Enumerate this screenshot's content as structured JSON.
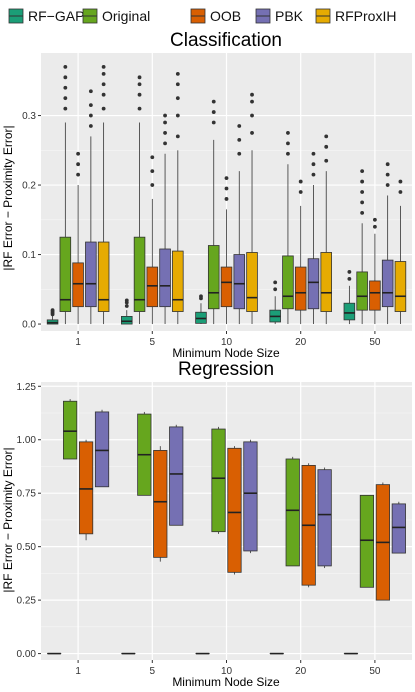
{
  "colors": {
    "RF-GAP": "#1b9e77",
    "Original": "#66a61e",
    "OOB": "#d95f02",
    "PBK": "#7570b3",
    "RFProxIH": "#e6ab02"
  },
  "legend": [
    "RF−GAP",
    "Original",
    "OOB",
    "PBK",
    "RFProxIH"
  ],
  "chart_data": [
    {
      "type": "box",
      "title": "Classification",
      "xlabel": "Minimum Node Size",
      "ylabel": "|RF Error − Proximity Error|",
      "categories": [
        "1",
        "5",
        "10",
        "20",
        "50"
      ],
      "yticks": [
        0.0,
        0.1,
        0.2,
        0.3
      ],
      "ytick_labels": [
        "0.0",
        "0.1",
        "0.2",
        "0.3"
      ],
      "ylim": [
        -0.01,
        0.39
      ],
      "grid": true,
      "series": [
        {
          "name": "RF−GAP",
          "boxes": [
            {
              "min": 0.0,
              "q1": 0.0,
              "median": 0.002,
              "q3": 0.006,
              "max": 0.012,
              "outliers": [
                0.014,
                0.016,
                0.018,
                0.02
              ]
            },
            {
              "min": 0.0,
              "q1": 0.0,
              "median": 0.004,
              "q3": 0.011,
              "max": 0.02,
              "outliers": [
                0.026,
                0.031,
                0.034
              ]
            },
            {
              "min": 0.0,
              "q1": 0.001,
              "median": 0.008,
              "q3": 0.017,
              "max": 0.03,
              "outliers": [
                0.037,
                0.04
              ]
            },
            {
              "min": 0.0,
              "q1": 0.003,
              "median": 0.011,
              "q3": 0.02,
              "max": 0.04,
              "outliers": [
                0.05,
                0.06
              ]
            },
            {
              "min": 0.0,
              "q1": 0.006,
              "median": 0.016,
              "q3": 0.03,
              "max": 0.055,
              "outliers": [
                0.065,
                0.075
              ]
            }
          ]
        },
        {
          "name": "Original",
          "boxes": [
            {
              "min": 0.0,
              "q1": 0.018,
              "median": 0.035,
              "q3": 0.125,
              "max": 0.29,
              "outliers": [
                0.31,
                0.325,
                0.34,
                0.355,
                0.37
              ]
            },
            {
              "min": 0.0,
              "q1": 0.018,
              "median": 0.035,
              "q3": 0.125,
              "max": 0.29,
              "outliers": [
                0.31,
                0.33,
                0.345,
                0.355
              ]
            },
            {
              "min": 0.0,
              "q1": 0.022,
              "median": 0.045,
              "q3": 0.113,
              "max": 0.265,
              "outliers": [
                0.29,
                0.305,
                0.32
              ]
            },
            {
              "min": 0.0,
              "q1": 0.022,
              "median": 0.04,
              "q3": 0.098,
              "max": 0.23,
              "outliers": [
                0.245,
                0.26,
                0.275
              ]
            },
            {
              "min": 0.0,
              "q1": 0.02,
              "median": 0.04,
              "q3": 0.075,
              "max": 0.145,
              "outliers": [
                0.16,
                0.175,
                0.19,
                0.205,
                0.22
              ]
            }
          ]
        },
        {
          "name": "OOB",
          "boxes": [
            {
              "min": 0.0,
              "q1": 0.025,
              "median": 0.058,
              "q3": 0.088,
              "max": 0.2,
              "outliers": [
                0.215,
                0.23,
                0.245
              ]
            },
            {
              "min": 0.0,
              "q1": 0.025,
              "median": 0.055,
              "q3": 0.082,
              "max": 0.18,
              "outliers": [
                0.2,
                0.22,
                0.24
              ]
            },
            {
              "min": 0.0,
              "q1": 0.025,
              "median": 0.06,
              "q3": 0.082,
              "max": 0.165,
              "outliers": [
                0.18,
                0.195,
                0.21
              ]
            },
            {
              "min": 0.0,
              "q1": 0.02,
              "median": 0.045,
              "q3": 0.082,
              "max": 0.17,
              "outliers": [
                0.19,
                0.205
              ]
            },
            {
              "min": 0.0,
              "q1": 0.02,
              "median": 0.045,
              "q3": 0.062,
              "max": 0.13,
              "outliers": [
                0.14,
                0.15
              ]
            }
          ]
        },
        {
          "name": "PBK",
          "boxes": [
            {
              "min": 0.0,
              "q1": 0.025,
              "median": 0.058,
              "q3": 0.118,
              "max": 0.27,
              "outliers": [
                0.285,
                0.3,
                0.315,
                0.335
              ]
            },
            {
              "min": 0.0,
              "q1": 0.025,
              "median": 0.055,
              "q3": 0.108,
              "max": 0.245,
              "outliers": [
                0.26,
                0.275,
                0.29,
                0.3
              ]
            },
            {
              "min": 0.0,
              "q1": 0.022,
              "median": 0.058,
              "q3": 0.1,
              "max": 0.22,
              "outliers": [
                0.245,
                0.265,
                0.285
              ]
            },
            {
              "min": 0.0,
              "q1": 0.022,
              "median": 0.06,
              "q3": 0.094,
              "max": 0.2,
              "outliers": [
                0.215,
                0.23,
                0.245
              ]
            },
            {
              "min": 0.0,
              "q1": 0.025,
              "median": 0.045,
              "q3": 0.092,
              "max": 0.185,
              "outliers": [
                0.2,
                0.215,
                0.23
              ]
            }
          ]
        },
        {
          "name": "RFProxIH",
          "boxes": [
            {
              "min": 0.0,
              "q1": 0.018,
              "median": 0.035,
              "q3": 0.118,
              "max": 0.29,
              "outliers": [
                0.31,
                0.33,
                0.345,
                0.36,
                0.37
              ]
            },
            {
              "min": 0.0,
              "q1": 0.018,
              "median": 0.035,
              "q3": 0.105,
              "max": 0.25,
              "outliers": [
                0.27,
                0.3,
                0.325,
                0.345,
                0.36
              ]
            },
            {
              "min": 0.0,
              "q1": 0.018,
              "median": 0.038,
              "q3": 0.103,
              "max": 0.25,
              "outliers": [
                0.275,
                0.3,
                0.32,
                0.33
              ]
            },
            {
              "min": 0.0,
              "q1": 0.018,
              "median": 0.045,
              "q3": 0.103,
              "max": 0.22,
              "outliers": [
                0.235,
                0.255,
                0.27
              ]
            },
            {
              "min": 0.0,
              "q1": 0.018,
              "median": 0.04,
              "q3": 0.09,
              "max": 0.17,
              "outliers": [
                0.19,
                0.205
              ]
            }
          ]
        }
      ]
    },
    {
      "type": "box",
      "title": "Regression",
      "xlabel": "Minimum Node Size",
      "ylabel": "|RF Error − Proximity Error|",
      "categories": [
        "1",
        "5",
        "10",
        "20",
        "50"
      ],
      "yticks": [
        0.0,
        0.25,
        0.5,
        0.75,
        1.0,
        1.25
      ],
      "ytick_labels": [
        "0.00",
        "0.25",
        "0.50",
        "0.75",
        "1.00",
        "1.25"
      ],
      "ylim": [
        -0.03,
        1.27
      ],
      "grid": true,
      "series": [
        {
          "name": "RF−GAP",
          "boxes": [
            {
              "min": 0.0,
              "q1": 0.0,
              "median": 0.0,
              "q3": 0.0,
              "max": 0.0,
              "outliers": []
            },
            {
              "min": 0.0,
              "q1": 0.0,
              "median": 0.0,
              "q3": 0.0,
              "max": 0.0,
              "outliers": []
            },
            {
              "min": 0.0,
              "q1": 0.0,
              "median": 0.0,
              "q3": 0.0,
              "max": 0.0,
              "outliers": []
            },
            {
              "min": 0.0,
              "q1": 0.0,
              "median": 0.0,
              "q3": 0.0,
              "max": 0.0,
              "outliers": []
            },
            {
              "min": 0.0,
              "q1": 0.0,
              "median": 0.0,
              "q3": 0.0,
              "max": 0.0,
              "outliers": []
            }
          ]
        },
        {
          "name": "Original",
          "boxes": [
            {
              "min": 0.91,
              "q1": 0.91,
              "median": 1.04,
              "q3": 1.18,
              "max": 1.19,
              "outliers": []
            },
            {
              "min": 0.74,
              "q1": 0.74,
              "median": 0.93,
              "q3": 1.12,
              "max": 1.13,
              "outliers": []
            },
            {
              "min": 0.56,
              "q1": 0.57,
              "median": 0.82,
              "q3": 1.05,
              "max": 1.06,
              "outliers": []
            },
            {
              "min": 0.41,
              "q1": 0.41,
              "median": 0.67,
              "q3": 0.91,
              "max": 0.92,
              "outliers": []
            },
            {
              "min": 0.31,
              "q1": 0.31,
              "median": 0.53,
              "q3": 0.74,
              "max": 0.74,
              "outliers": []
            }
          ]
        },
        {
          "name": "OOB",
          "boxes": [
            {
              "min": 0.53,
              "q1": 0.56,
              "median": 0.77,
              "q3": 0.99,
              "max": 1.0,
              "outliers": []
            },
            {
              "min": 0.43,
              "q1": 0.45,
              "median": 0.71,
              "q3": 0.95,
              "max": 0.97,
              "outliers": []
            },
            {
              "min": 0.37,
              "q1": 0.38,
              "median": 0.66,
              "q3": 0.96,
              "max": 0.97,
              "outliers": []
            },
            {
              "min": 0.31,
              "q1": 0.32,
              "median": 0.6,
              "q3": 0.88,
              "max": 0.89,
              "outliers": []
            },
            {
              "min": 0.25,
              "q1": 0.25,
              "median": 0.52,
              "q3": 0.79,
              "max": 0.8,
              "outliers": []
            }
          ]
        },
        {
          "name": "PBK",
          "boxes": [
            {
              "min": 0.78,
              "q1": 0.78,
              "median": 0.95,
              "q3": 1.13,
              "max": 1.14,
              "outliers": []
            },
            {
              "min": 0.6,
              "q1": 0.6,
              "median": 0.84,
              "q3": 1.06,
              "max": 1.07,
              "outliers": []
            },
            {
              "min": 0.47,
              "q1": 0.48,
              "median": 0.75,
              "q3": 0.99,
              "max": 1.0,
              "outliers": []
            },
            {
              "min": 0.4,
              "q1": 0.41,
              "median": 0.65,
              "q3": 0.86,
              "max": 0.87,
              "outliers": []
            },
            {
              "min": 0.47,
              "q1": 0.47,
              "median": 0.59,
              "q3": 0.7,
              "max": 0.71,
              "outliers": []
            }
          ]
        }
      ]
    }
  ]
}
